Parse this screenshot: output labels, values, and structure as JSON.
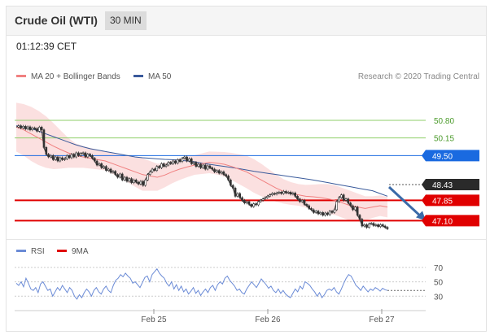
{
  "header": {
    "title": "Crude Oil (WTI)",
    "interval": "30 MIN"
  },
  "timestamp": "01:12:39 CET",
  "credit": "Research © 2020 Trading Central",
  "colors": {
    "ma20": "#f08080",
    "ma50": "#3a5a9b",
    "bollinger": "#f7c6c6",
    "candle": "#333333",
    "support": "#e00000",
    "resistance": "#8fcf6a",
    "current": "#1a6ae0",
    "rsi": "#6b8bd6",
    "rsi_ma": "#e00000"
  },
  "chart_data": [
    {
      "type": "line",
      "name": "price",
      "legend": [
        "MA 20 + Bollinger Bands",
        "MA 50"
      ],
      "x_ticks": [
        "Feb 25",
        "Feb 26",
        "Feb 27"
      ],
      "ylim": [
        46.6,
        52.0
      ],
      "price_series": [
        50.55,
        50.6,
        50.52,
        50.58,
        50.48,
        50.56,
        50.45,
        50.52,
        50.5,
        50.4,
        50.55,
        50.45,
        49.8,
        49.55,
        49.45,
        49.5,
        49.35,
        49.45,
        49.3,
        49.42,
        49.35,
        49.38,
        49.5,
        49.42,
        49.55,
        49.45,
        49.6,
        49.5,
        49.58,
        49.6,
        49.45,
        49.55,
        49.5,
        49.4,
        49.3,
        49.15,
        49.2,
        49.05,
        49.1,
        48.95,
        49.0,
        48.88,
        48.92,
        48.8,
        48.7,
        48.82,
        48.6,
        48.7,
        48.55,
        48.65,
        48.5,
        48.6,
        48.52,
        48.45,
        48.55,
        48.4,
        48.6,
        48.8,
        48.9,
        49.0,
        48.95,
        49.1,
        49.05,
        49.2,
        49.1,
        49.15,
        49.25,
        49.2,
        49.3,
        49.22,
        49.35,
        49.28,
        49.4,
        49.45,
        49.3,
        49.38,
        49.2,
        49.25,
        49.1,
        49.18,
        49.05,
        49.15,
        49.0,
        49.12,
        49.05,
        49.0,
        48.9,
        48.95,
        48.85,
        48.9,
        48.8,
        48.75,
        48.6,
        48.4,
        48.3,
        48.0,
        48.1,
        47.95,
        47.85,
        47.75,
        47.8,
        47.7,
        47.62,
        47.72,
        47.68,
        47.8,
        47.85,
        47.9,
        47.95,
        48.0,
        48.05,
        48.1,
        48.08,
        48.12,
        48.15,
        48.1,
        48.18,
        48.12,
        48.15,
        48.08,
        48.12,
        48.0,
        47.9,
        47.8,
        47.85,
        47.7,
        47.65,
        47.55,
        47.5,
        47.4,
        47.45,
        47.35,
        47.4,
        47.3,
        47.38,
        47.32,
        47.45,
        47.4,
        47.5,
        47.8,
        47.95,
        48.05,
        47.85,
        47.9,
        47.75,
        47.65,
        47.5,
        47.6,
        47.3,
        47.15,
        46.9,
        46.95,
        46.85,
        46.98,
        47.0,
        46.92,
        46.95,
        46.88,
        46.95,
        46.9,
        46.85,
        46.8
      ],
      "ma50_series": [
        50.6,
        50.55,
        50.5,
        50.4,
        50.3,
        50.2,
        50.1,
        50.0,
        49.9,
        49.82,
        49.75,
        49.7,
        49.65,
        49.6,
        49.55,
        49.5,
        49.45,
        49.42,
        49.4,
        49.38,
        49.36,
        49.35,
        49.33,
        49.3,
        49.27,
        49.22,
        49.18,
        49.14,
        49.1,
        49.06,
        49.02,
        48.97,
        48.92,
        48.88,
        48.84,
        48.8,
        48.76,
        48.72,
        48.68,
        48.64,
        48.6,
        48.55,
        48.5,
        48.45,
        48.4,
        48.35,
        48.3,
        48.25,
        48.2,
        48.1,
        48.0
      ],
      "ma20_series": [
        50.55,
        50.45,
        50.3,
        50.15,
        50.0,
        49.85,
        49.72,
        49.6,
        49.5,
        49.45,
        49.4,
        49.35,
        49.3,
        49.2,
        49.1,
        49.0,
        48.9,
        48.8,
        48.75,
        48.7,
        48.78,
        48.9,
        49.0,
        49.08,
        49.15,
        49.2,
        49.25,
        49.22,
        49.18,
        49.1,
        49.0,
        48.9,
        48.75,
        48.6,
        48.45,
        48.3,
        48.18,
        48.1,
        48.05,
        48.0,
        47.98,
        47.95,
        47.9,
        47.85,
        47.75,
        47.65,
        47.6,
        47.55,
        47.6,
        47.65,
        47.6
      ],
      "boll_width": [
        0.9,
        0.95,
        1.0,
        1.0,
        0.95,
        0.85,
        0.7,
        0.55,
        0.45,
        0.4,
        0.38,
        0.36,
        0.35,
        0.38,
        0.42,
        0.48,
        0.55,
        0.6,
        0.55,
        0.5,
        0.45,
        0.42,
        0.4,
        0.38,
        0.36,
        0.38,
        0.4,
        0.42,
        0.45,
        0.5,
        0.55,
        0.6,
        0.62,
        0.6,
        0.55,
        0.5,
        0.45,
        0.42,
        0.4,
        0.42,
        0.45,
        0.5,
        0.55,
        0.55,
        0.55,
        0.55,
        0.5,
        0.45,
        0.4,
        0.38,
        0.38
      ],
      "levels": [
        {
          "value": 50.8,
          "label": "50.80",
          "kind": "resistance"
        },
        {
          "value": 50.15,
          "label": "50.15",
          "kind": "resistance"
        },
        {
          "value": 49.5,
          "label": "49.50",
          "kind": "current"
        },
        {
          "value": 48.43,
          "label": "48.43",
          "kind": "last"
        },
        {
          "value": 47.85,
          "label": "47.85",
          "kind": "support"
        },
        {
          "value": 47.1,
          "label": "47.10",
          "kind": "support"
        }
      ],
      "forecast_arrow": {
        "from": 48.43,
        "to": 47.55
      }
    },
    {
      "type": "line",
      "name": "rsi",
      "legend": [
        "RSI",
        "9MA"
      ],
      "y_ticks": [
        70,
        50,
        30
      ],
      "ylim": [
        10,
        80
      ],
      "rsi_series": [
        48,
        45,
        50,
        43,
        55,
        48,
        40,
        38,
        42,
        35,
        47,
        50,
        44,
        38,
        40,
        30,
        36,
        42,
        38,
        45,
        40,
        35,
        42,
        38,
        30,
        26,
        32,
        28,
        35,
        40,
        36,
        30,
        38,
        42,
        36,
        33,
        40,
        44,
        38,
        35,
        45,
        52,
        55,
        60,
        57,
        62,
        58,
        55,
        48,
        50,
        46,
        42,
        49,
        56,
        58,
        50,
        60,
        64,
        68,
        62,
        58,
        55,
        48,
        44,
        50,
        40,
        46,
        38,
        44,
        36,
        40,
        33,
        37,
        42,
        34,
        38,
        31,
        36,
        40,
        35,
        42,
        45,
        38,
        46,
        50,
        47,
        55,
        58,
        52,
        48,
        44,
        38,
        40,
        35,
        33,
        40,
        45,
        50,
        46,
        42,
        48,
        54,
        50,
        46,
        41,
        44,
        38,
        35,
        40,
        34,
        38,
        33,
        30,
        28,
        34,
        40,
        36,
        44,
        40,
        50,
        48,
        45,
        40,
        36,
        30,
        35,
        28,
        32,
        38,
        40,
        38,
        42,
        36,
        33,
        40,
        48,
        55,
        60,
        58,
        52,
        45,
        42,
        38,
        44,
        40,
        36,
        40,
        38,
        42,
        40,
        37,
        41,
        39,
        38
      ],
      "rsi_ma_series": []
    }
  ]
}
